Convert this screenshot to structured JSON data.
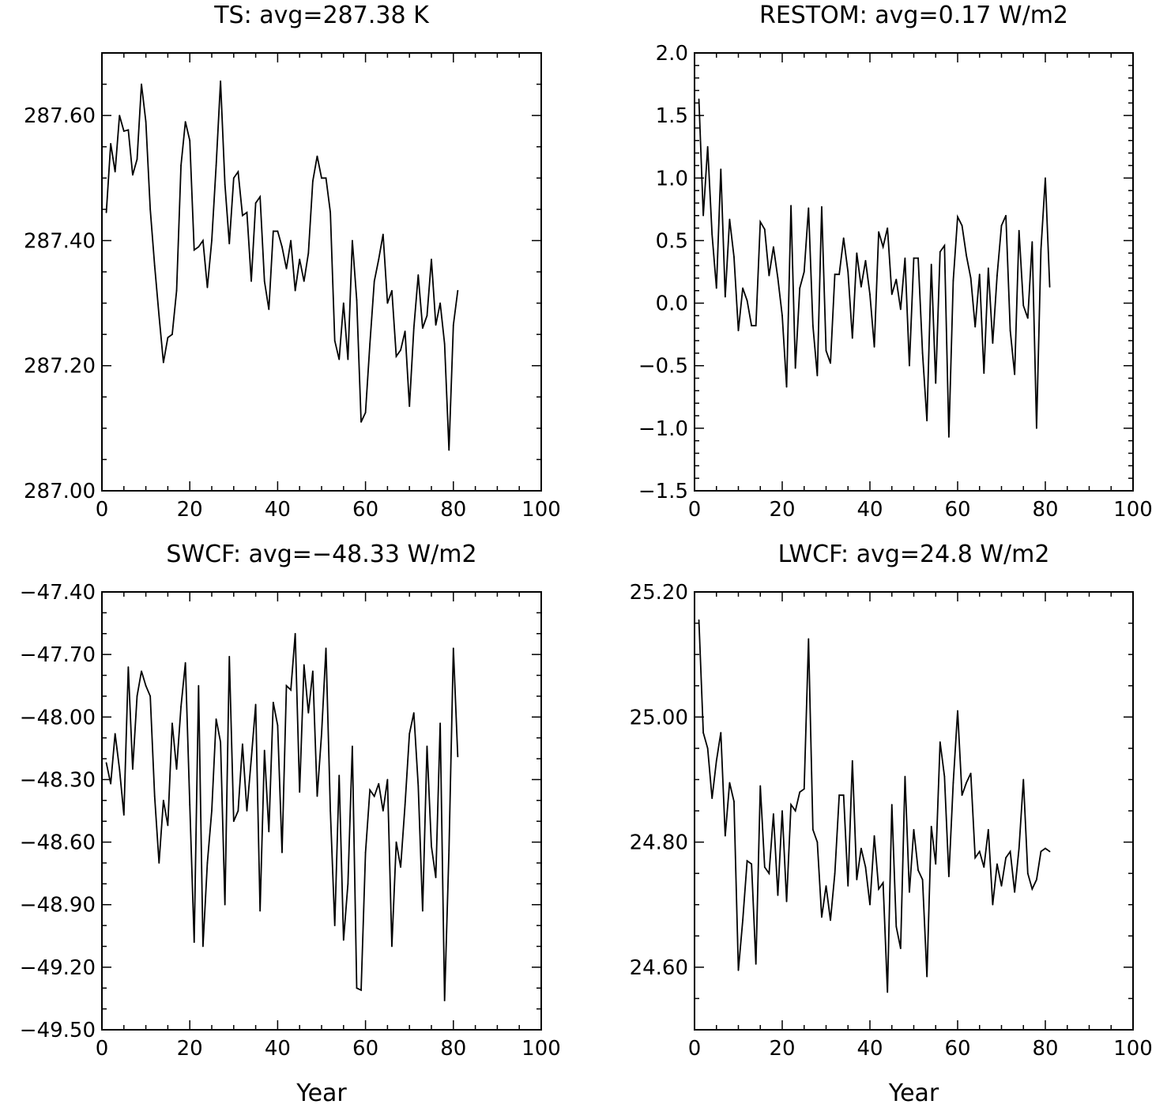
{
  "chart_data": [
    {
      "type": "line",
      "title": "TS: avg=287.38 K",
      "xlabel": "",
      "ylabel": "",
      "xlim": [
        0,
        100
      ],
      "ylim": [
        287.0,
        287.7
      ],
      "xticks": [
        0,
        20,
        40,
        60,
        80,
        100
      ],
      "xtick_labels": [
        "0",
        "20",
        "40",
        "60",
        "80",
        "100"
      ],
      "yticks": [
        287.0,
        287.2,
        287.4,
        287.6
      ],
      "ytick_labels": [
        "287.00",
        "287.20",
        "287.40",
        "287.60"
      ],
      "x_minor_step": 5,
      "y_minor_step": 0.05,
      "grid": false,
      "series": [
        {
          "x": [
            1,
            2,
            3,
            4,
            5,
            6,
            7,
            8,
            9,
            10,
            11,
            12,
            13,
            14,
            15,
            16,
            17,
            18,
            19,
            20,
            21,
            22,
            23,
            24,
            25,
            26,
            27,
            28,
            29,
            30,
            31,
            32,
            33,
            34,
            35,
            36,
            37,
            38,
            39,
            40,
            41,
            42,
            43,
            44,
            45,
            46,
            47,
            48,
            49,
            50,
            51,
            52,
            53,
            54,
            55,
            56,
            57,
            58,
            59,
            60,
            61,
            62,
            63,
            64,
            65,
            66,
            67,
            68,
            69,
            70,
            71,
            72,
            73,
            74,
            75,
            76,
            77,
            78,
            79,
            80,
            81
          ],
          "values": [
            287.445,
            287.555,
            287.51,
            287.6,
            287.575,
            287.577,
            287.505,
            287.53,
            287.65,
            287.59,
            287.45,
            287.36,
            287.28,
            287.205,
            287.245,
            287.25,
            287.32,
            287.52,
            287.59,
            287.56,
            287.385,
            287.39,
            287.4,
            287.325,
            287.4,
            287.52,
            287.655,
            287.49,
            287.395,
            287.5,
            287.51,
            287.44,
            287.445,
            287.335,
            287.46,
            287.47,
            287.335,
            287.29,
            287.415,
            287.415,
            287.39,
            287.355,
            287.4,
            287.32,
            287.37,
            287.335,
            287.38,
            287.495,
            287.535,
            287.5,
            287.5,
            287.445,
            287.24,
            287.21,
            287.3,
            287.21,
            287.4,
            287.305,
            287.11,
            287.125,
            287.235,
            287.335,
            287.37,
            287.41,
            287.3,
            287.32,
            287.215,
            287.225,
            287.255,
            287.135,
            287.26,
            287.345,
            287.26,
            287.28,
            287.37,
            287.265,
            287.3,
            287.235,
            287.065,
            287.265,
            287.32
          ]
        }
      ]
    },
    {
      "type": "line",
      "title": "RESTOM: avg=0.17 W/m2",
      "xlabel": "",
      "ylabel": "",
      "xlim": [
        0,
        100
      ],
      "ylim": [
        -1.5,
        2.0
      ],
      "xticks": [
        0,
        20,
        40,
        60,
        80,
        100
      ],
      "xtick_labels": [
        "0",
        "20",
        "40",
        "60",
        "80",
        "100"
      ],
      "yticks": [
        -1.5,
        -1.0,
        -0.5,
        0.0,
        0.5,
        1.0,
        1.5,
        2.0
      ],
      "ytick_labels": [
        "−1.5",
        "−1.0",
        "−0.5",
        "0.0",
        "0.5",
        "1.0",
        "1.5",
        "2.0"
      ],
      "x_minor_step": 5,
      "y_minor_step": 0.1,
      "grid": false,
      "series": [
        {
          "x": [
            1,
            2,
            3,
            4,
            5,
            6,
            7,
            8,
            9,
            10,
            11,
            12,
            13,
            14,
            15,
            16,
            17,
            18,
            19,
            20,
            21,
            22,
            23,
            24,
            25,
            26,
            27,
            28,
            29,
            30,
            31,
            32,
            33,
            34,
            35,
            36,
            37,
            38,
            39,
            40,
            41,
            42,
            43,
            44,
            45,
            46,
            47,
            48,
            49,
            50,
            51,
            52,
            53,
            54,
            55,
            56,
            57,
            58,
            59,
            60,
            61,
            62,
            63,
            64,
            65,
            66,
            67,
            68,
            69,
            70,
            71,
            72,
            73,
            74,
            75,
            76,
            77,
            78,
            79,
            80,
            81
          ],
          "values": [
            1.63,
            0.7,
            1.25,
            0.55,
            0.12,
            1.07,
            0.05,
            0.67,
            0.37,
            -0.22,
            0.12,
            0.02,
            -0.18,
            -0.18,
            0.65,
            0.59,
            0.22,
            0.45,
            0.2,
            -0.1,
            -0.67,
            0.78,
            -0.52,
            0.12,
            0.25,
            0.76,
            -0.18,
            -0.58,
            0.77,
            -0.38,
            -0.48,
            0.23,
            0.23,
            0.52,
            0.25,
            -0.28,
            0.4,
            0.13,
            0.34,
            0.07,
            -0.35,
            0.57,
            0.45,
            0.6,
            0.07,
            0.19,
            -0.05,
            0.36,
            -0.5,
            0.36,
            0.36,
            -0.4,
            -0.94,
            0.31,
            -0.64,
            0.41,
            0.46,
            -1.07,
            0.18,
            0.69,
            0.62,
            0.38,
            0.2,
            -0.19,
            0.23,
            -0.56,
            0.28,
            -0.32,
            0.22,
            0.62,
            0.7,
            -0.22,
            -0.57,
            0.58,
            -0.02,
            -0.12,
            0.49,
            -1.0,
            0.43,
            1.0,
            0.13
          ]
        }
      ]
    },
    {
      "type": "line",
      "title": "SWCF: avg=−48.33 W/m2",
      "xlabel": "Year",
      "ylabel": "",
      "xlim": [
        0,
        100
      ],
      "ylim": [
        -49.5,
        -47.4
      ],
      "xticks": [
        0,
        20,
        40,
        60,
        80,
        100
      ],
      "xtick_labels": [
        "0",
        "20",
        "40",
        "60",
        "80",
        "100"
      ],
      "yticks": [
        -49.5,
        -49.2,
        -48.9,
        -48.6,
        -48.3,
        -48.0,
        -47.7,
        -47.4
      ],
      "ytick_labels": [
        "−49.50",
        "−49.20",
        "−48.90",
        "−48.60",
        "−48.30",
        "−48.00",
        "−47.70",
        "−47.40"
      ],
      "x_minor_step": 5,
      "y_minor_step": 0.1,
      "grid": false,
      "series": [
        {
          "x": [
            1,
            2,
            3,
            4,
            5,
            6,
            7,
            8,
            9,
            10,
            11,
            12,
            13,
            14,
            15,
            16,
            17,
            18,
            19,
            20,
            21,
            22,
            23,
            24,
            25,
            26,
            27,
            28,
            29,
            30,
            31,
            32,
            33,
            34,
            35,
            36,
            37,
            38,
            39,
            40,
            41,
            42,
            43,
            44,
            45,
            46,
            47,
            48,
            49,
            50,
            51,
            52,
            53,
            54,
            55,
            56,
            57,
            58,
            59,
            60,
            61,
            62,
            63,
            64,
            65,
            66,
            67,
            68,
            69,
            70,
            71,
            72,
            73,
            74,
            75,
            76,
            77,
            78,
            79,
            80,
            81
          ],
          "values": [
            -48.22,
            -48.32,
            -48.08,
            -48.25,
            -48.47,
            -47.76,
            -48.25,
            -47.9,
            -47.78,
            -47.85,
            -47.9,
            -48.38,
            -48.7,
            -48.4,
            -48.52,
            -48.03,
            -48.25,
            -47.95,
            -47.74,
            -48.42,
            -49.08,
            -47.85,
            -49.1,
            -48.7,
            -48.45,
            -48.01,
            -48.12,
            -48.9,
            -47.71,
            -48.5,
            -48.45,
            -48.13,
            -48.45,
            -48.2,
            -47.94,
            -48.93,
            -48.16,
            -48.55,
            -47.93,
            -48.04,
            -48.65,
            -47.85,
            -47.87,
            -47.6,
            -48.36,
            -47.75,
            -47.98,
            -47.78,
            -48.38,
            -48.08,
            -47.67,
            -48.45,
            -49.0,
            -48.28,
            -49.07,
            -48.8,
            -48.14,
            -49.3,
            -49.31,
            -48.65,
            -48.35,
            -48.38,
            -48.32,
            -48.45,
            -48.3,
            -49.1,
            -48.6,
            -48.72,
            -48.42,
            -48.08,
            -47.98,
            -48.33,
            -48.93,
            -48.14,
            -48.62,
            -48.77,
            -48.03,
            -49.36,
            -48.64,
            -47.67,
            -48.19
          ]
        }
      ]
    },
    {
      "type": "line",
      "title": "LWCF: avg=24.8 W/m2",
      "xlabel": "Year",
      "ylabel": "",
      "xlim": [
        0,
        100
      ],
      "ylim": [
        24.5,
        25.2
      ],
      "xticks": [
        0,
        20,
        40,
        60,
        80,
        100
      ],
      "xtick_labels": [
        "0",
        "20",
        "40",
        "60",
        "80",
        "100"
      ],
      "yticks": [
        24.6,
        24.8,
        25.0,
        25.2
      ],
      "ytick_labels": [
        "24.60",
        "24.80",
        "25.00",
        "25.20"
      ],
      "x_minor_step": 5,
      "y_minor_step": 0.05,
      "grid": false,
      "series": [
        {
          "x": [
            1,
            2,
            3,
            4,
            5,
            6,
            7,
            8,
            9,
            10,
            11,
            12,
            13,
            14,
            15,
            16,
            17,
            18,
            19,
            20,
            21,
            22,
            23,
            24,
            25,
            26,
            27,
            28,
            29,
            30,
            31,
            32,
            33,
            34,
            35,
            36,
            37,
            38,
            39,
            40,
            41,
            42,
            43,
            44,
            45,
            46,
            47,
            48,
            49,
            50,
            51,
            52,
            53,
            54,
            55,
            56,
            57,
            58,
            59,
            60,
            61,
            62,
            63,
            64,
            65,
            66,
            67,
            68,
            69,
            70,
            71,
            72,
            73,
            74,
            75,
            76,
            77,
            78,
            79,
            80,
            81
          ],
          "values": [
            25.155,
            24.975,
            24.95,
            24.87,
            24.93,
            24.975,
            24.81,
            24.895,
            24.865,
            24.595,
            24.675,
            24.77,
            24.765,
            24.605,
            24.89,
            24.76,
            24.75,
            24.845,
            24.715,
            24.85,
            24.705,
            24.86,
            24.85,
            24.88,
            24.885,
            25.125,
            24.82,
            24.8,
            24.68,
            24.73,
            24.675,
            24.75,
            24.875,
            24.875,
            24.73,
            24.93,
            24.74,
            24.79,
            24.76,
            24.7,
            24.81,
            24.725,
            24.735,
            24.56,
            24.86,
            24.665,
            24.63,
            24.905,
            24.72,
            24.82,
            24.755,
            24.74,
            24.585,
            24.825,
            24.765,
            24.96,
            24.905,
            24.745,
            24.895,
            25.01,
            24.875,
            24.895,
            24.91,
            24.775,
            24.785,
            24.76,
            24.82,
            24.7,
            24.765,
            24.73,
            24.775,
            24.785,
            24.72,
            24.79,
            24.9,
            24.75,
            24.725,
            24.74,
            24.785,
            24.79,
            24.785
          ]
        }
      ]
    }
  ]
}
